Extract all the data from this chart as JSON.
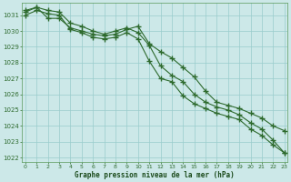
{
  "x_hours": [
    0,
    1,
    2,
    3,
    4,
    5,
    6,
    7,
    8,
    9,
    10,
    11,
    12,
    13,
    14,
    15,
    16,
    17,
    18,
    19,
    20,
    21,
    22,
    23
  ],
  "line1": [
    1031.2,
    1031.5,
    1030.8,
    1030.8,
    1030.2,
    1030.0,
    1029.8,
    1029.7,
    1029.8,
    1030.1,
    1030.3,
    1029.2,
    1028.7,
    1028.3,
    1027.7,
    1027.1,
    1026.2,
    1025.5,
    1025.3,
    1025.1,
    1024.8,
    1024.5,
    1024.0,
    1023.7
  ],
  "line2": [
    1031.3,
    1031.5,
    1031.3,
    1031.2,
    1030.5,
    1030.3,
    1030.0,
    1029.8,
    1030.0,
    1030.2,
    1029.9,
    1029.1,
    1027.8,
    1027.2,
    1026.8,
    1026.0,
    1025.5,
    1025.2,
    1025.0,
    1024.7,
    1024.2,
    1023.8,
    1023.1,
    1022.3
  ],
  "line3": [
    1031.0,
    1031.3,
    1031.1,
    1031.0,
    1030.1,
    1029.9,
    1029.6,
    1029.5,
    1029.6,
    1029.9,
    1029.5,
    1028.1,
    1027.0,
    1026.8,
    1025.9,
    1025.4,
    1025.1,
    1024.8,
    1024.6,
    1024.4,
    1023.8,
    1023.4,
    1022.8,
    1022.3
  ],
  "line_color": "#2d6a2d",
  "bg_color": "#cce8e8",
  "grid_color": "#99cccc",
  "axis_label_color": "#1a4a1a",
  "tick_label_color": "#2d6a2d",
  "yticks": [
    1022,
    1023,
    1024,
    1025,
    1026,
    1027,
    1028,
    1029,
    1030,
    1031
  ],
  "xticks": [
    0,
    1,
    2,
    3,
    4,
    5,
    6,
    7,
    8,
    9,
    10,
    11,
    12,
    13,
    14,
    15,
    16,
    17,
    18,
    19,
    20,
    21,
    22,
    23
  ],
  "xlabel": "Graphe pression niveau de la mer (hPa)",
  "ylim_min": 1021.7,
  "ylim_max": 1031.8
}
